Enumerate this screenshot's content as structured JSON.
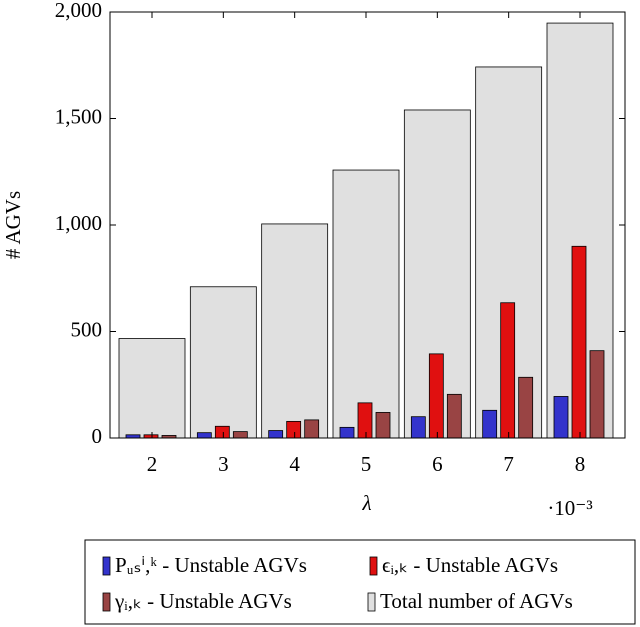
{
  "chart_data": {
    "type": "bar",
    "x_label": "λ",
    "x_multiplier": "·10⁻³",
    "y_label": "# AGVs",
    "categories": [
      "2",
      "3",
      "4",
      "5",
      "6",
      "7",
      "8"
    ],
    "series": [
      {
        "name": "Pᵤₛⁱ,ᵏ - Unstable AGVs",
        "color": "#3333cc",
        "values": [
          15,
          25,
          35,
          50,
          100,
          130,
          195
        ]
      },
      {
        "name": "ϵᵢ,ₖ - Unstable AGVs",
        "color": "#e01010",
        "values": [
          15,
          55,
          78,
          165,
          395,
          635,
          900
        ]
      },
      {
        "name": "γᵢ,ₖ - Unstable AGVs",
        "color": "#994444",
        "values": [
          12,
          30,
          85,
          120,
          205,
          285,
          410
        ]
      },
      {
        "name": "Total number of AGVs",
        "color": "#e0e0e0",
        "values": [
          467,
          710,
          1005,
          1258,
          1540,
          1742,
          1948
        ]
      }
    ],
    "ylim": [
      0,
      2000
    ],
    "yticks": [
      0,
      500,
      {
        "value": 1000,
        "label": "1,000"
      },
      {
        "value": 1500,
        "label": "1,500"
      },
      {
        "value": 2000,
        "label": "2,000"
      }
    ]
  }
}
